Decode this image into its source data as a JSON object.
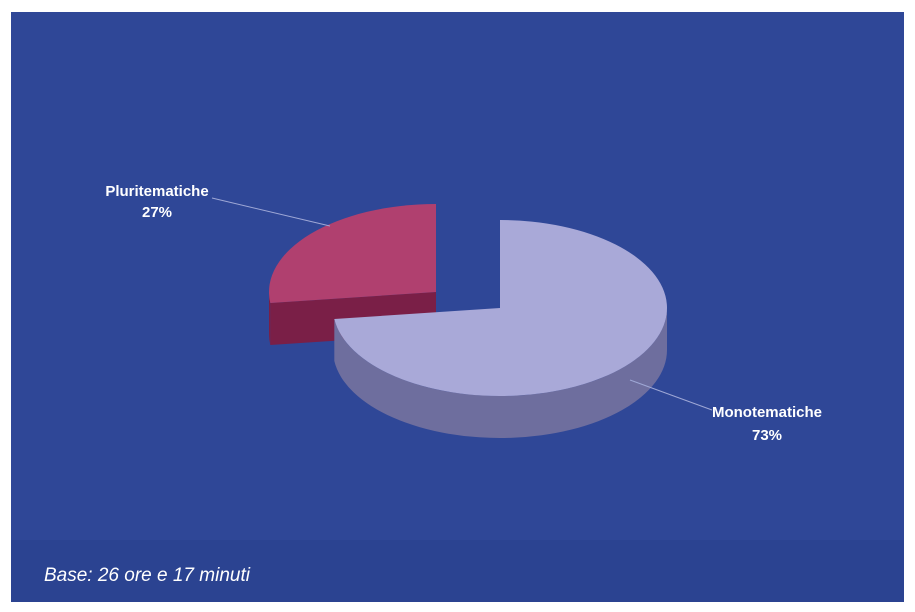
{
  "chart_data": {
    "type": "pie",
    "categories": [
      "Pluritematiche",
      "Monotematiche"
    ],
    "values": [
      27,
      73
    ],
    "value_labels": [
      "27%",
      "73%"
    ],
    "colors": {
      "Pluritematiche": {
        "top": "#b0406f",
        "side": "#7a1f47"
      },
      "Monotematiche": {
        "top": "#a9a9d8",
        "side": "#6e6e9e"
      }
    },
    "style": "3d-exploded",
    "background": "#2f4797"
  },
  "footnote": "Base: 26 ore e 17 minuti"
}
